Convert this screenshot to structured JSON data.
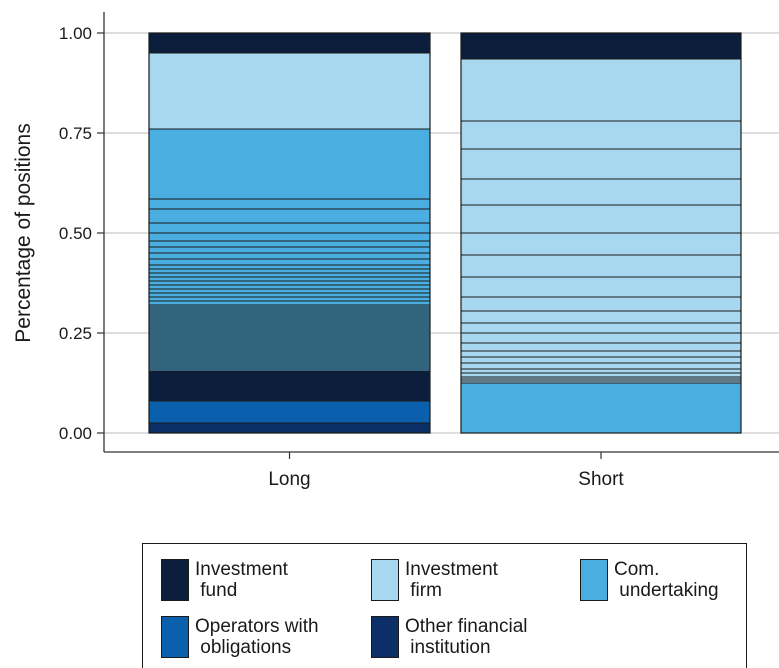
{
  "chart_data": {
    "type": "bar",
    "stacked": true,
    "normalized": true,
    "categories": [
      "Long",
      "Short"
    ],
    "ylabel": "Percentage of positions",
    "xlabel": "",
    "ylim": [
      0,
      1
    ],
    "yticks": [
      "0.00",
      "0.25",
      "0.50",
      "0.75",
      "1.00"
    ],
    "grid": true,
    "legend_position": "bottom",
    "legend": [
      {
        "label": "Investment\n fund",
        "color": "#0b1e3c"
      },
      {
        "label": "Investment\n firm",
        "color": "#a8d8ef"
      },
      {
        "label": "Com.\n undertaking",
        "color": "#4aaee0"
      },
      {
        "label": "Operators with\n obligations",
        "color": "#0a60ad"
      },
      {
        "label": "Other financial\n institution",
        "color": "#0b2f66"
      }
    ],
    "series": [
      {
        "name": "Other financial institution",
        "color": "#0b2f66",
        "stack": {
          "Long": [
            [
              0.0,
              0.025
            ]
          ],
          "Short": []
        }
      },
      {
        "name": "Operators with obligations",
        "color": "#0a60ad",
        "stack": {
          "Long": [
            [
              0.025,
              0.08
            ]
          ],
          "Short": []
        }
      },
      {
        "name": "Investment fund",
        "color": "#0b1e3c",
        "stack": {
          "Long": [
            [
              0.08,
              0.155
            ],
            [
              0.95,
              1.0
            ]
          ],
          "Short": [
            [
              0.935,
              1.0
            ]
          ]
        }
      },
      {
        "name": "Com. undertaking",
        "color": "#4aaee0",
        "stack": {
          "Long": [
            [
              0.155,
              0.76
            ]
          ],
          "Short": [
            [
              0.0,
              0.125
            ]
          ]
        }
      },
      {
        "name": "Investment firm",
        "color": "#a8d8ef",
        "stack": {
          "Long": [
            [
              0.76,
              0.95
            ]
          ],
          "Short": [
            [
              0.125,
              0.935
            ]
          ]
        }
      }
    ],
    "segment_boundaries": {
      "Long": [
        0.025,
        0.08,
        0.155,
        0.16,
        0.165,
        0.17,
        0.175,
        0.18,
        0.185,
        0.19,
        0.195,
        0.2,
        0.205,
        0.21,
        0.215,
        0.22,
        0.225,
        0.23,
        0.235,
        0.24,
        0.245,
        0.25,
        0.255,
        0.26,
        0.265,
        0.27,
        0.275,
        0.28,
        0.285,
        0.29,
        0.295,
        0.3,
        0.305,
        0.31,
        0.315,
        0.32,
        0.33,
        0.34,
        0.35,
        0.36,
        0.37,
        0.38,
        0.39,
        0.4,
        0.41,
        0.42,
        0.435,
        0.45,
        0.465,
        0.48,
        0.5,
        0.525,
        0.56,
        0.585,
        0.76,
        0.95
      ],
      "Short": [
        0.125,
        0.13,
        0.135,
        0.14,
        0.15,
        0.16,
        0.175,
        0.19,
        0.205,
        0.225,
        0.25,
        0.275,
        0.305,
        0.34,
        0.39,
        0.445,
        0.5,
        0.57,
        0.635,
        0.71,
        0.78,
        0.935
      ]
    }
  }
}
